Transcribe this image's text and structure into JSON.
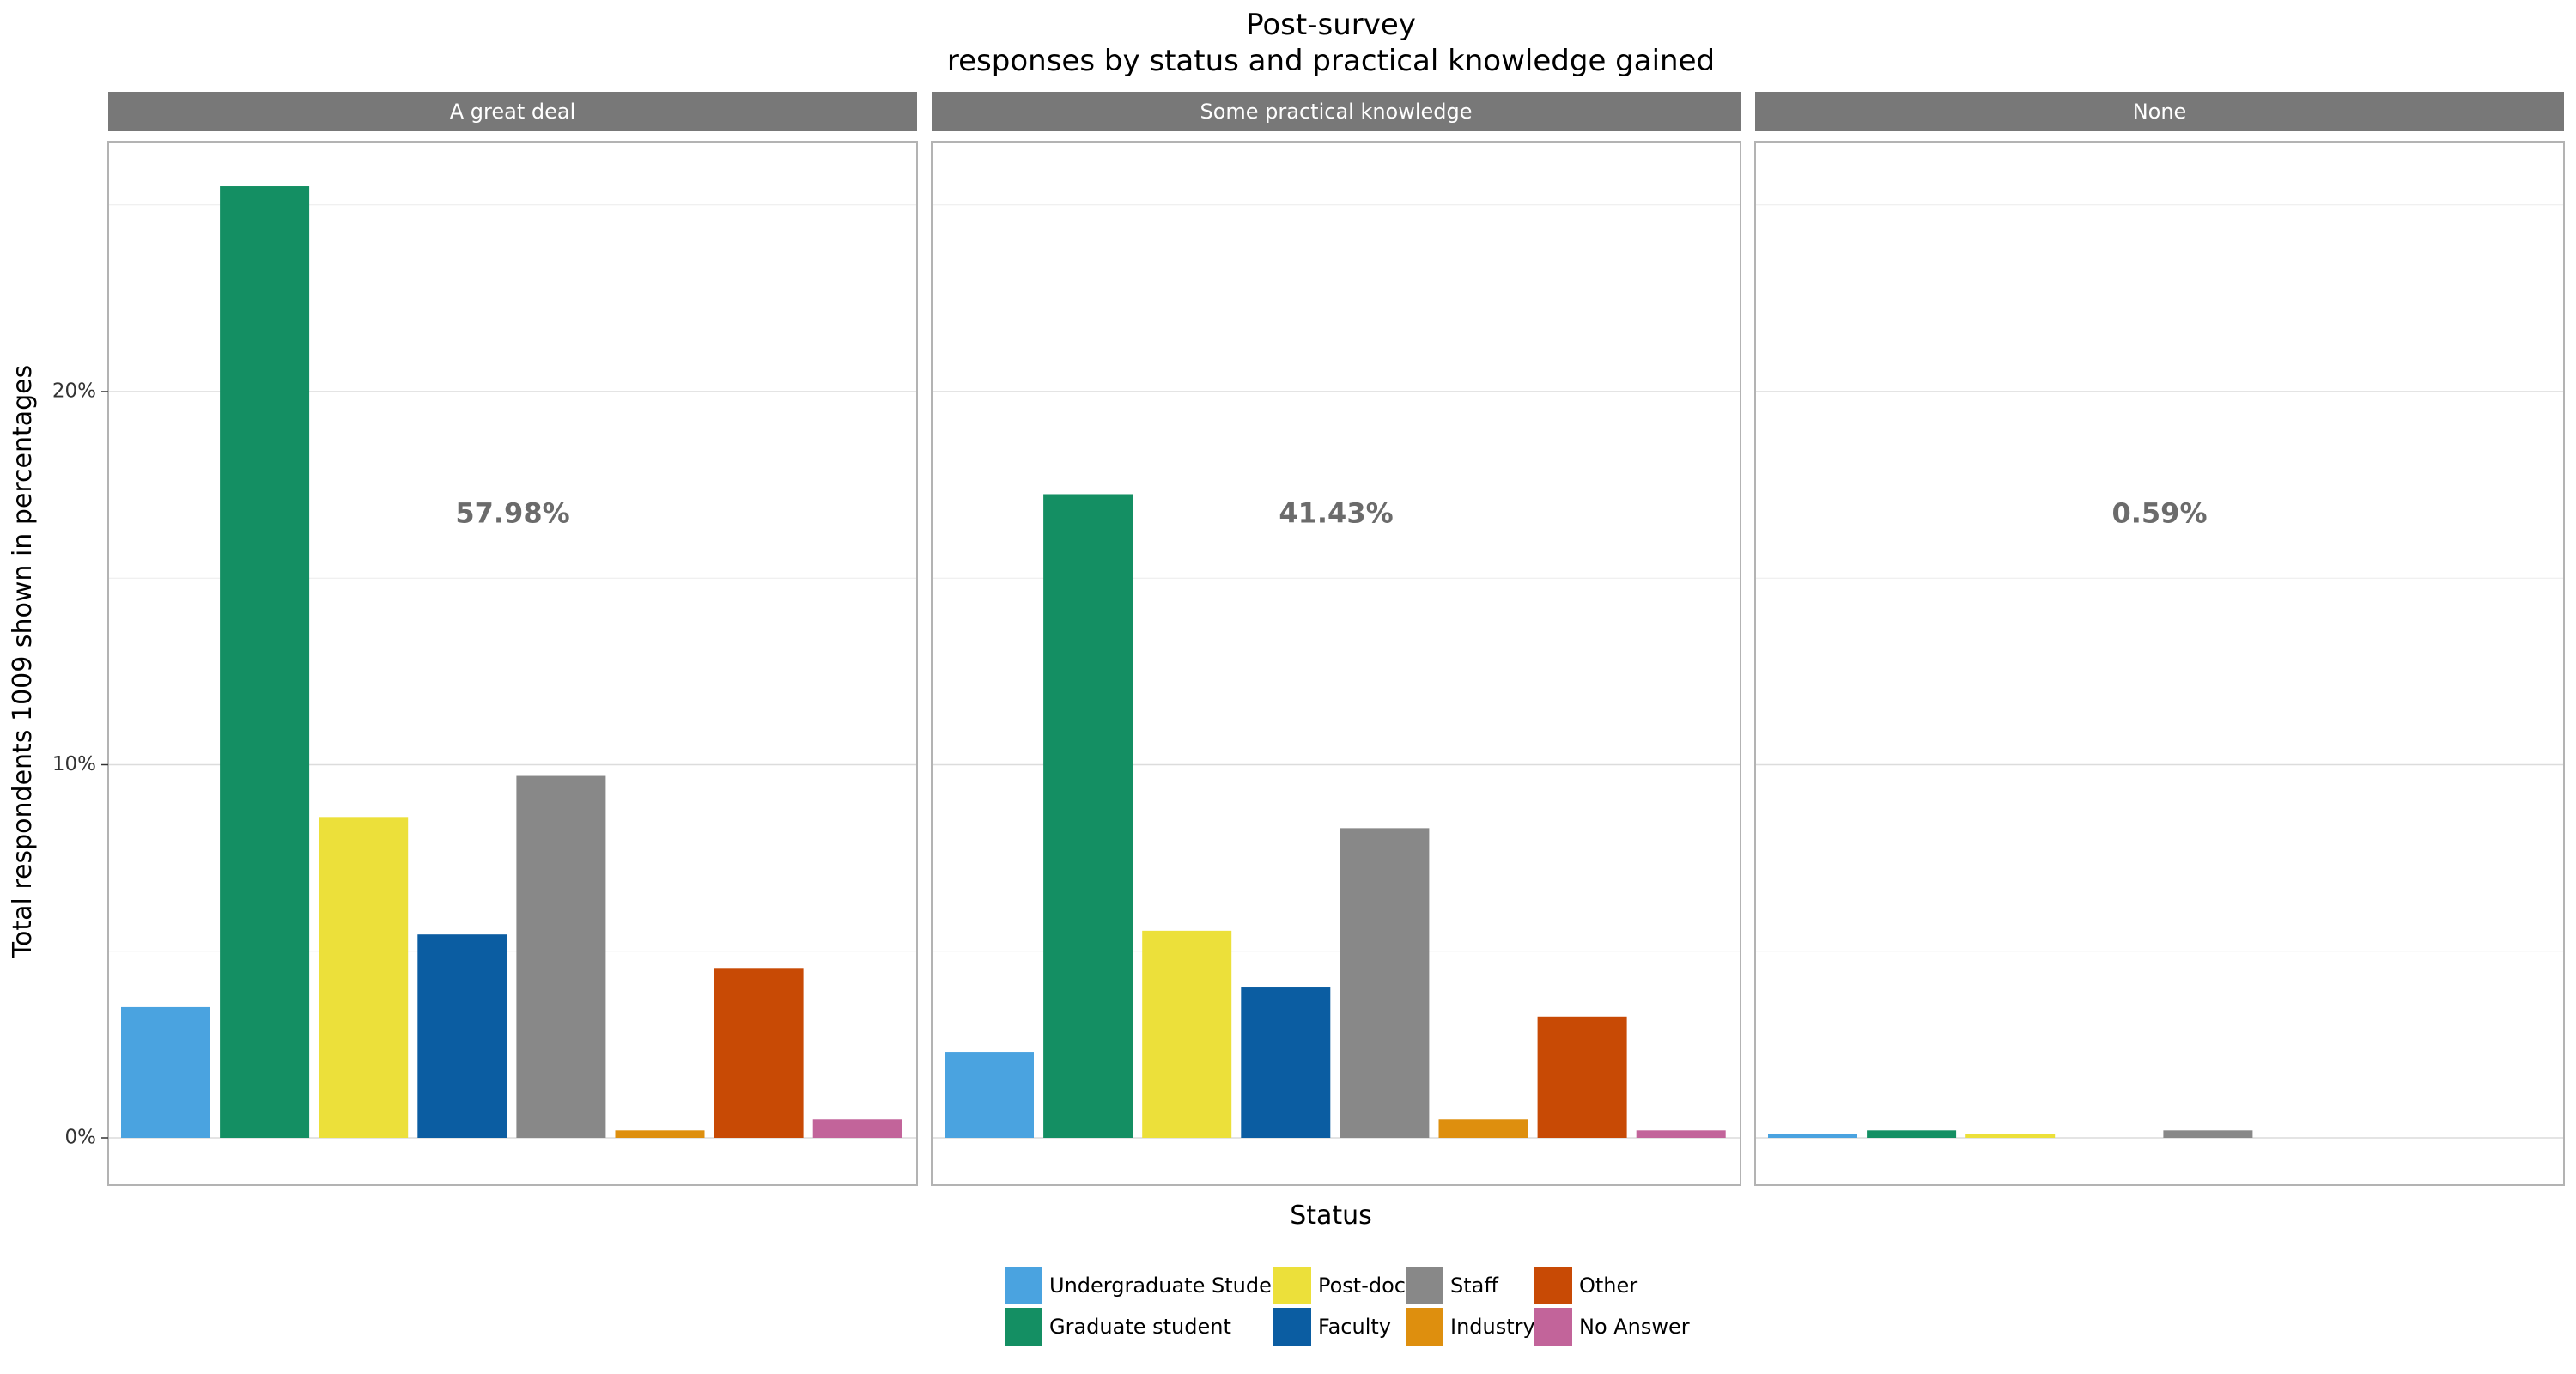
{
  "chart_data": {
    "type": "bar",
    "title": "Post-survey",
    "subtitle": "responses by status and practical knowledge gained",
    "xlabel": "Status",
    "ylabel": "Total respondents 1009 shown in percentages",
    "ylim": [
      0,
      25
    ],
    "yticks": [
      0,
      10,
      20
    ],
    "ytick_labels": [
      "0%",
      "10%",
      "20%"
    ],
    "grid": true,
    "legend_position": "bottom",
    "categories": [
      "Undergraduate Student",
      "Graduate student",
      "Post-doc",
      "Faculty",
      "Staff",
      "Industry",
      "Other",
      "No Answer"
    ],
    "colors": [
      "#4aa3e0",
      "#148f63",
      "#ece03a",
      "#0b5da2",
      "#888888",
      "#de8f0e",
      "#c84a05",
      "#c2649a"
    ],
    "panels": [
      {
        "label": "A great deal",
        "total": "57.98%",
        "values": [
          3.5,
          25.5,
          8.6,
          5.45,
          9.7,
          0.2,
          4.55,
          0.5
        ]
      },
      {
        "label": "Some practical knowledge",
        "total": "41.43%",
        "values": [
          2.3,
          17.25,
          5.55,
          4.05,
          8.3,
          0.5,
          3.25,
          0.2
        ]
      },
      {
        "label": "None",
        "total": "0.59%",
        "values": [
          0.1,
          0.2,
          0.1,
          0,
          0.2,
          0,
          0,
          0
        ]
      }
    ]
  }
}
